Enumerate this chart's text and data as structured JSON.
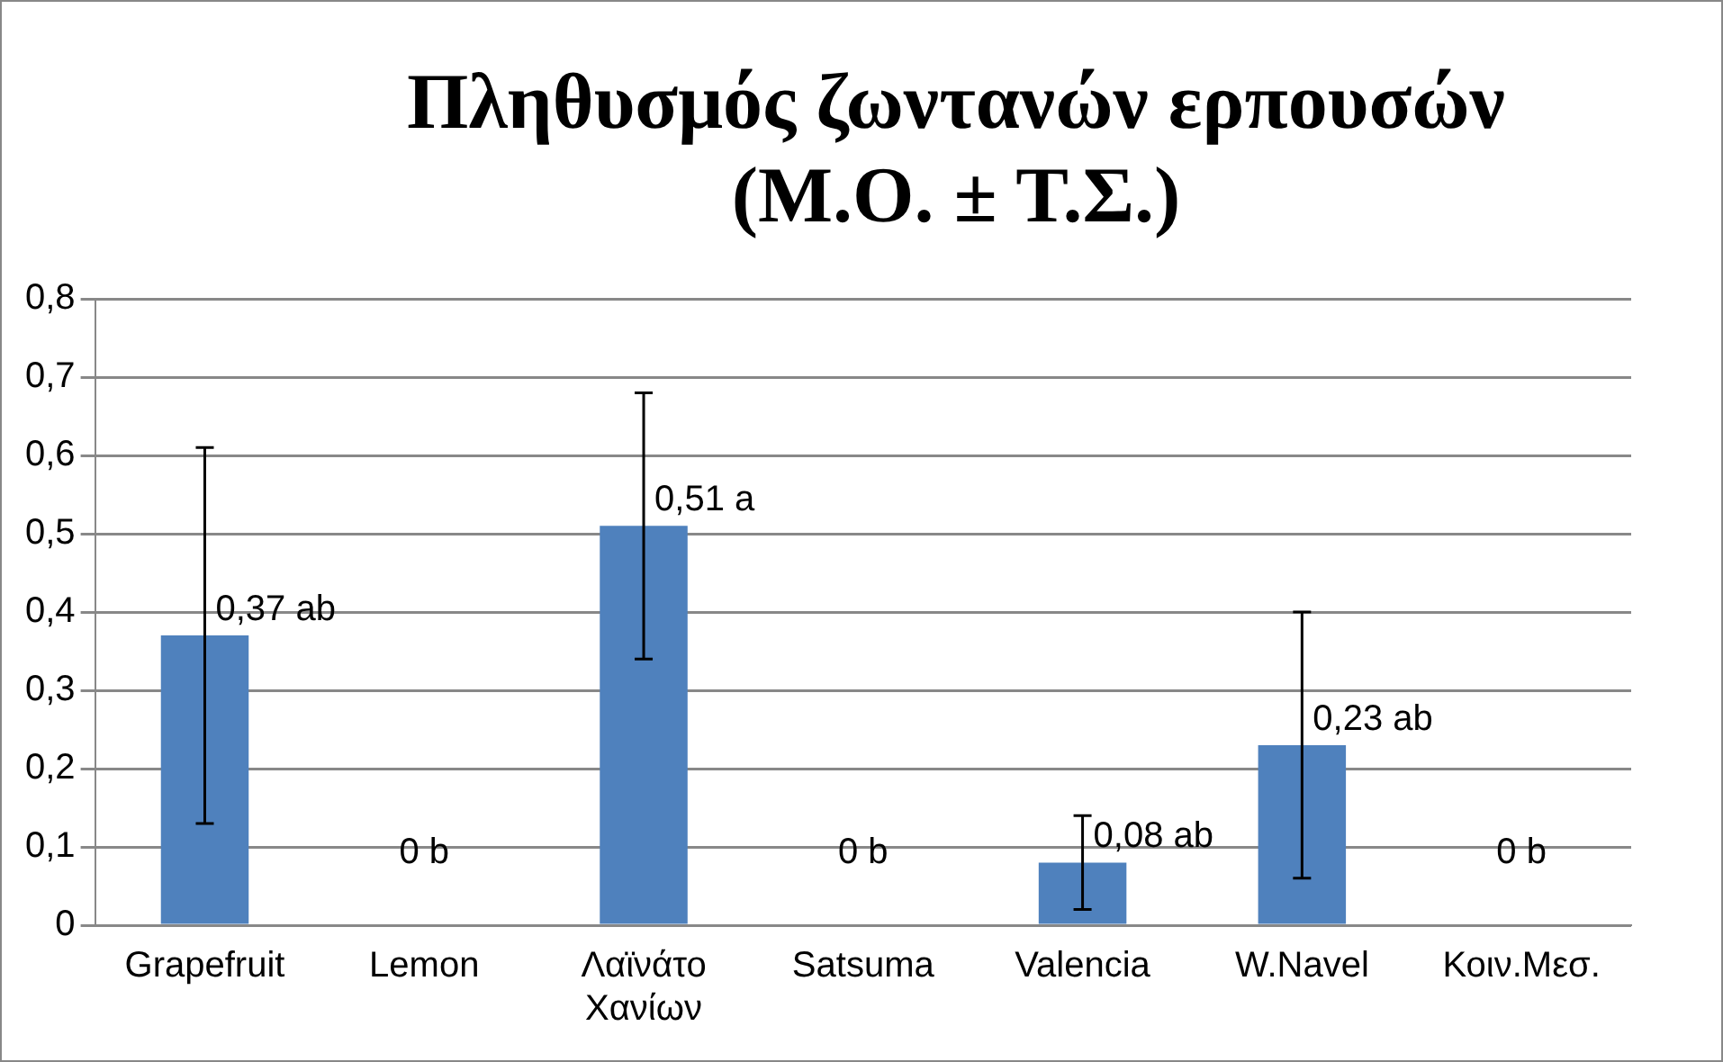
{
  "chart_data": {
    "type": "bar",
    "title": "Πληθυσμός ζωντανών ερπουσών (Μ.Ο. ± Τ.Σ.)",
    "categories": [
      "Grapefruit",
      "Lemon",
      "Λαϊνάτο Χανίων",
      "Satsuma",
      "Valencia",
      "W.Navel",
      "Κοιν.Μεσ."
    ],
    "values": [
      0.37,
      0,
      0.51,
      0,
      0.08,
      0.23,
      0
    ],
    "errors": [
      0.24,
      null,
      0.17,
      null,
      0.06,
      0.17,
      null
    ],
    "value_labels": [
      "0,37 ab",
      "0 b",
      "0,51 a",
      "0 b",
      "0,08 ab",
      "0,23 ab",
      "0 b"
    ],
    "color": "#4f81bd",
    "ylim": [
      0,
      0.8
    ],
    "yticks": [
      {
        "value": 0,
        "label": "0"
      },
      {
        "value": 0.1,
        "label": "0,1"
      },
      {
        "value": 0.2,
        "label": "0,2"
      },
      {
        "value": 0.3,
        "label": "0,3"
      },
      {
        "value": 0.4,
        "label": "0,4"
      },
      {
        "value": 0.5,
        "label": "0,5"
      },
      {
        "value": 0.6,
        "label": "0,6"
      },
      {
        "value": 0.7,
        "label": "0,7"
      },
      {
        "value": 0.8,
        "label": "0,8"
      }
    ],
    "grid": "y"
  }
}
